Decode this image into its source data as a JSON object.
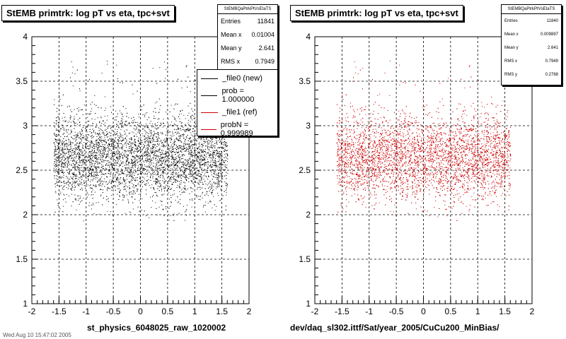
{
  "panels": [
    {
      "title": "StEMB primtrk: log pT vs eta, tpc+svt",
      "x_title": "st_physics_6048025_raw_1020002",
      "stats": {
        "header": "StEMBQaPtrkPtVsEtaTS",
        "rows": [
          {
            "label": "Entries",
            "value": "11841"
          },
          {
            "label": "Mean x",
            "value": "0.01004"
          },
          {
            "label": "Mean y",
            "value": "2.641"
          },
          {
            "label": "RMS x",
            "value": "0.7949"
          }
        ]
      },
      "legend": [
        {
          "label": "_file0 (new)",
          "color": "#000000"
        },
        {
          "label": "prob = 1.000000",
          "color": "#000000"
        },
        {
          "label": "_file1 (ref)",
          "color": "#cc0000"
        },
        {
          "label": "probN = 0.999989",
          "color": "#cc0000"
        }
      ]
    },
    {
      "title": "StEMB primtrk: log pT vs eta, tpc+svt",
      "x_title": "dev/daq_sl302.ittf/Sat/year_2005/CuCu200_MinBias/",
      "stats": {
        "header": "StEMBQaPtrkPtVsEtaTS",
        "rows": [
          {
            "label": "Entries",
            "value": "11840"
          },
          {
            "label": "Mean x",
            "value": "0.009897"
          },
          {
            "label": "Mean y",
            "value": "2.641"
          },
          {
            "label": "RMS x",
            "value": "0.7949"
          },
          {
            "label": "RMS y",
            "value": "0.2768"
          }
        ]
      }
    }
  ],
  "footer": "Wed Aug 10 15:47:02 2005",
  "chart_data": [
    {
      "type": "scatter",
      "title": "StEMB primtrk: log pT vs eta, tpc+svt",
      "xlabel": "st_physics_6048025_raw_1020002",
      "ylabel": "",
      "xlim": [
        -2,
        2
      ],
      "ylim": [
        1,
        4
      ],
      "x_ticks": [
        "-2",
        "-1.5",
        "-1",
        "-0.5",
        "0",
        "0.5",
        "1",
        "1.5",
        "2"
      ],
      "y_ticks": [
        "1",
        "1.5",
        "2",
        "2.5",
        "3",
        "3.5",
        "4"
      ],
      "grid": true,
      "series": [
        {
          "name": "_file0 (new)",
          "color": "#000000",
          "entries": 11841,
          "x_range": [
            -1.6,
            1.6
          ],
          "y_range": [
            1.9,
            3.8
          ],
          "mean_x": 0.01004,
          "mean_y": 2.641,
          "rms_x": 0.7949,
          "rms_y": 0.2768
        }
      ]
    },
    {
      "type": "scatter",
      "title": "StEMB primtrk: log pT vs eta, tpc+svt",
      "xlabel": "dev/daq_sl302.ittf/Sat/year_2005/CuCu200_MinBias/",
      "ylabel": "",
      "xlim": [
        -2,
        2
      ],
      "ylim": [
        1,
        4
      ],
      "x_ticks": [
        "-2",
        "-1.5",
        "-1",
        "-0.5",
        "0",
        "0.5",
        "1",
        "1.5",
        "2"
      ],
      "y_ticks": [
        "1",
        "1.5",
        "2",
        "2.5",
        "3",
        "3.5",
        "4"
      ],
      "grid": true,
      "series": [
        {
          "name": "_file1 (ref)",
          "color": "#cc0000",
          "entries": 11840,
          "x_range": [
            -1.6,
            1.6
          ],
          "y_range": [
            1.9,
            3.8
          ],
          "mean_x": 0.009897,
          "mean_y": 2.641,
          "rms_x": 0.7949,
          "rms_y": 0.2768
        }
      ]
    }
  ]
}
